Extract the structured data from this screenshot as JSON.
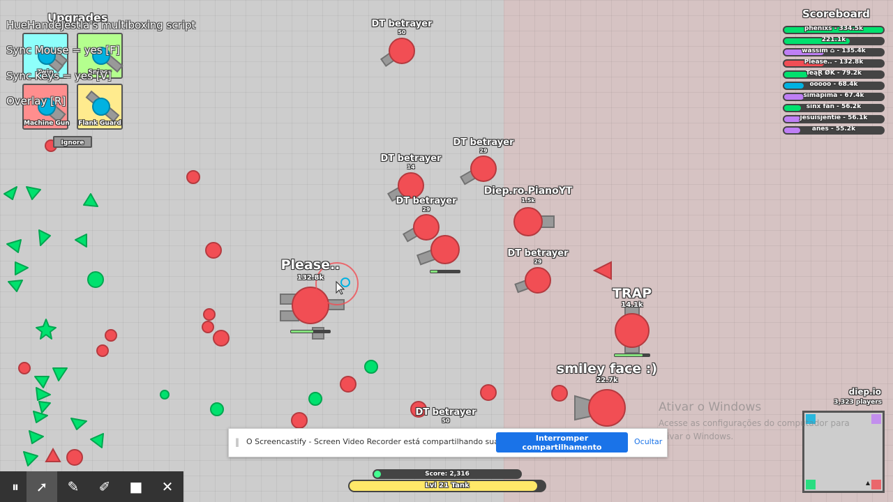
{
  "game": "diep.io",
  "colors": {
    "enemy_red": "#f14e54",
    "bullet_green": "#00e16e",
    "player_blue": "#00b2e1",
    "tank_gray": "#999999",
    "xp_yellow": "#ffe869",
    "score_green": "#43ff91"
  },
  "upgrades": {
    "title": "Upgrades",
    "options": [
      {
        "label": "Twin",
        "color": "#8efffb"
      },
      {
        "label": "Sniper",
        "color": "#b4ff8e"
      },
      {
        "label": "Machine Gun",
        "color": "#ff8e8e"
      },
      {
        "label": "Flank Guard",
        "color": "#ffeb8e"
      }
    ],
    "ignore_label": "Ignore"
  },
  "script_overlay": [
    "HueHandeJestla's multiboxing script",
    "Sync Mouse = yes [F]",
    "Sync Keys = yes [V]",
    "Overlay [R]"
  ],
  "scoreboard": {
    "title": "Scoreboard",
    "entries": [
      {
        "text": "phenixs - 334.5k",
        "color": "#00e16e",
        "fill": 1.0
      },
      {
        "text": "221.1k",
        "color": "#00e16e",
        "fill": 0.66
      },
      {
        "text": "wassim ⌂ - 135.4k",
        "color": "#bf7ff5",
        "fill": 0.4
      },
      {
        "text": "Please.. - 132.8k",
        "color": "#f14e54",
        "fill": 0.4
      },
      {
        "text": "TeąⱤ ØK - 79.2k",
        "color": "#00e16e",
        "fill": 0.24
      },
      {
        "text": "ooooo - 68.4k",
        "color": "#00b2e1",
        "fill": 0.2
      },
      {
        "text": "simapima - 67.4k",
        "color": "#bf7ff5",
        "fill": 0.2
      },
      {
        "text": "sinx fan - 56.2k",
        "color": "#00e16e",
        "fill": 0.17
      },
      {
        "text": "jesuisjentie - 56.1k",
        "color": "#bf7ff5",
        "fill": 0.17
      },
      {
        "text": "anes - 55.2k",
        "color": "#bf7ff5",
        "fill": 0.16
      }
    ]
  },
  "players": [
    {
      "name": "DT betrayer",
      "score": "50"
    },
    {
      "name": "DT betrayer",
      "score": "29"
    },
    {
      "name": "DT betrayer",
      "score": "14"
    },
    {
      "name": "Diep.ro.PianoYT",
      "score": "1.5k"
    },
    {
      "name": "DT betrayer",
      "score": "29"
    },
    {
      "name": "DT betrayer",
      "score": "29"
    },
    {
      "name": "Please..",
      "score": "132.8k"
    },
    {
      "name": "TRAP",
      "score": "14.1k"
    },
    {
      "name": "smiley face :)",
      "score": "22.7k"
    },
    {
      "name": "DT betrayer",
      "score": "50"
    }
  ],
  "server": {
    "name": "diep.io",
    "players": "3,323 players"
  },
  "hud": {
    "score_text": "Score: 2,316",
    "score_fill": 0.03,
    "level_text": "Lvl 21 Tank",
    "level_fill": 0.96
  },
  "share_bar": {
    "message": "O Screencastify - Screen Video Recorder está compartilhando sua tela.",
    "stop_label": "Interromper compartilhamento",
    "hide_label": "Ocultar"
  },
  "watermark": {
    "title": "Ativar o Windows",
    "subtitle": "Acesse as configurações do computador para ativar o Windows."
  },
  "toolbar": {
    "icons": [
      "pause-icon",
      "pointer-icon",
      "pen-icon",
      "eraser-icon",
      "camera-icon",
      "close-icon"
    ],
    "glyphs": [
      "⏸",
      "➚",
      "✎",
      "✐",
      "■",
      "✕"
    ]
  }
}
